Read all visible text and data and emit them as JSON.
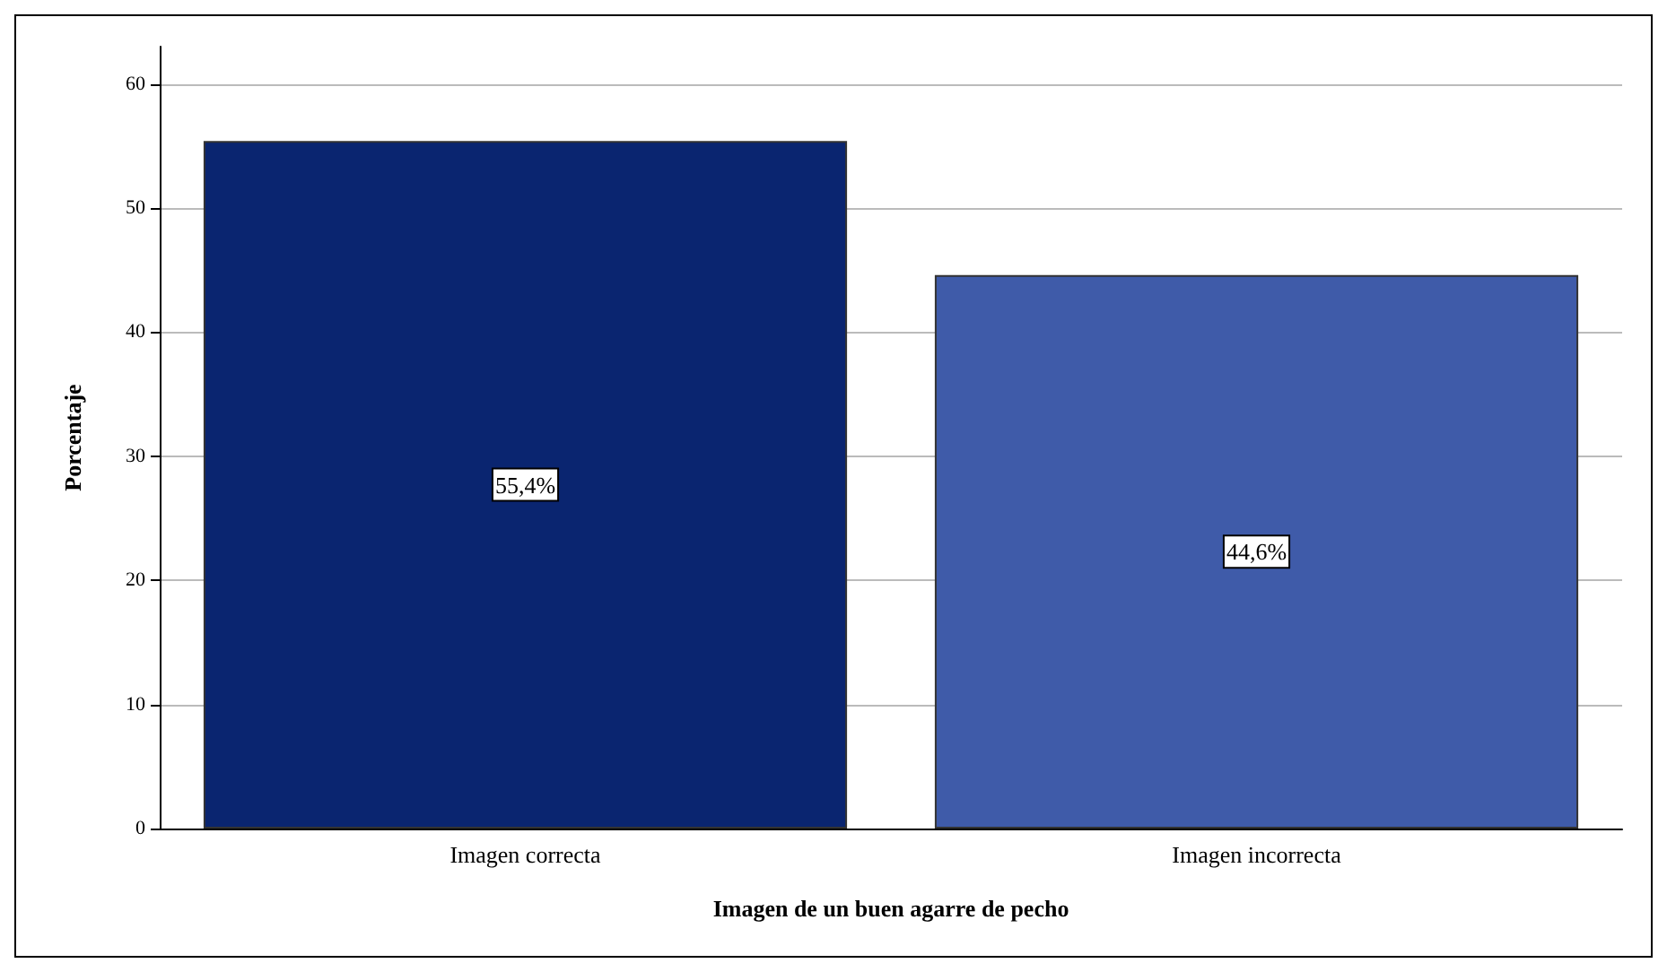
{
  "chart_data": {
    "type": "bar",
    "xlabel": "Imagen de un buen agarre de pecho",
    "ylabel": "Porcentaje",
    "categories": [
      "Imagen correcta",
      "Imagen incorrecta"
    ],
    "values": [
      55.4,
      44.6
    ],
    "colors": [
      "#0a2570",
      "#3f5ba9"
    ],
    "value_labels": [
      "55,4%",
      "44,6%"
    ],
    "ylim": [
      0,
      63
    ],
    "yticks": [
      0,
      10,
      20,
      30,
      40,
      50,
      60
    ],
    "grid": "y"
  }
}
